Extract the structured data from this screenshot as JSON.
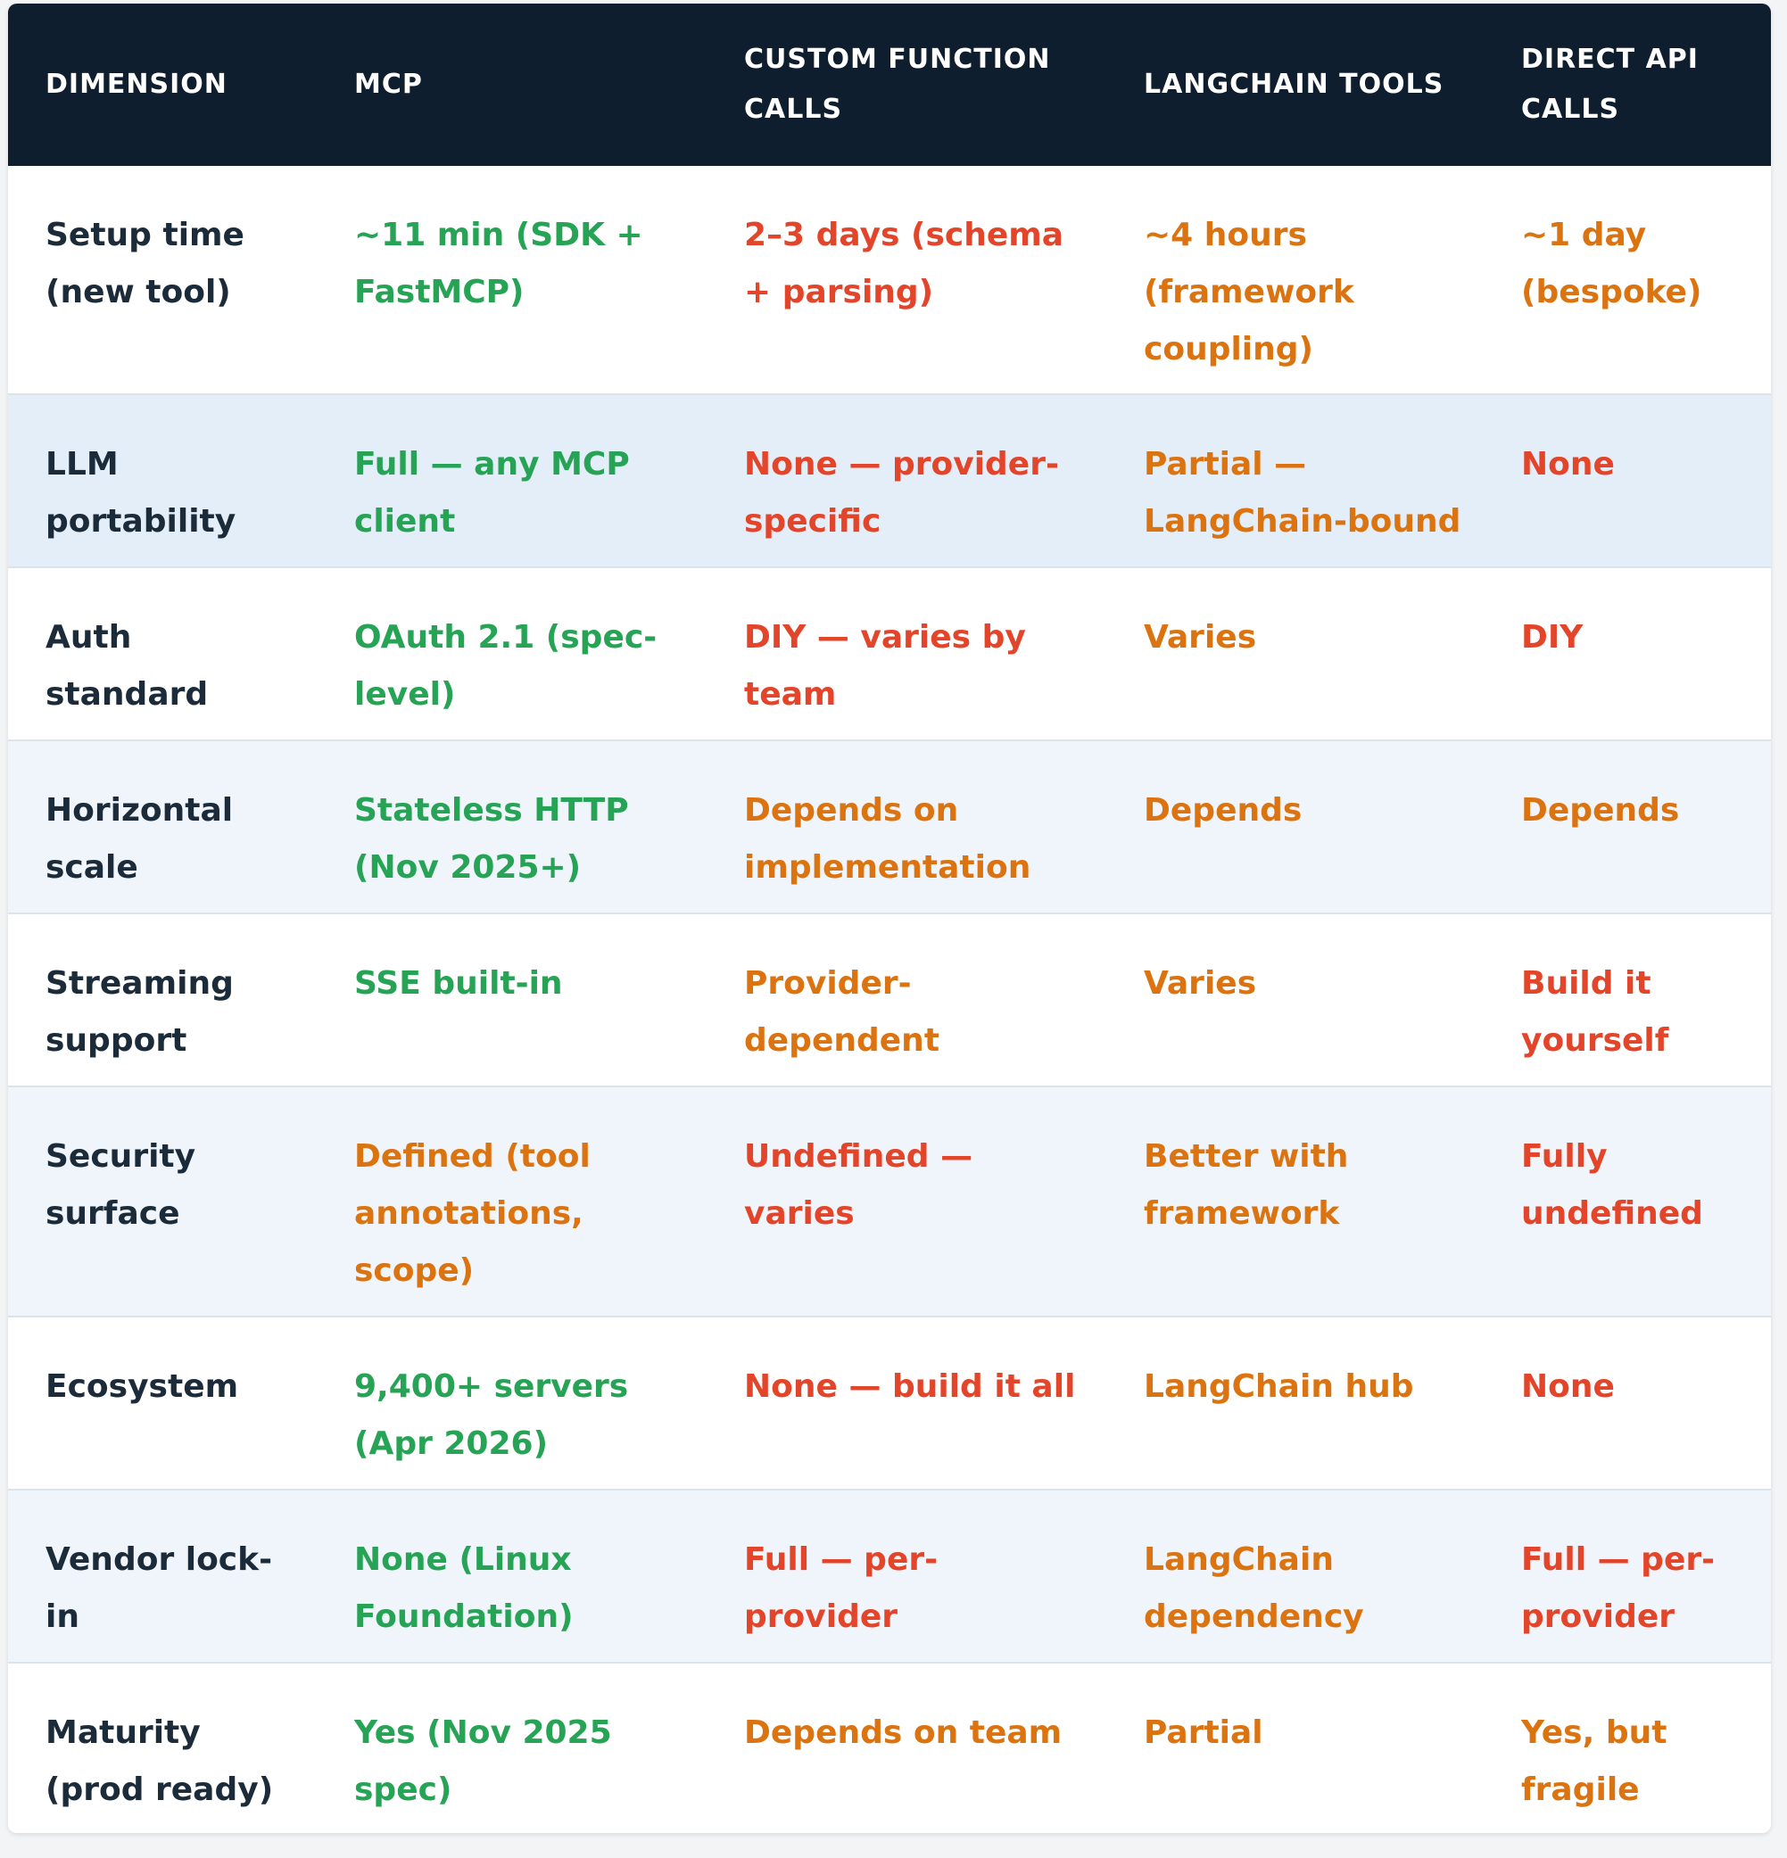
{
  "colors": {
    "header_bg": "#0e1e2e",
    "good": "#27a356",
    "warn": "#db7410",
    "bad": "#e3452a",
    "dimension_text": "#1c2b3a"
  },
  "table": {
    "headers": [
      "DIMENSION",
      "MCP",
      "CUSTOM FUNCTION CALLS",
      "LANGCHAIN TOOLS",
      "DIRECT API CALLS"
    ],
    "rows": [
      {
        "dimension": "Setup time (new tool)",
        "cells": [
          {
            "text": "~11 min (SDK + FastMCP)",
            "status": "good"
          },
          {
            "text": "2–3 days (schema + parsing)",
            "status": "bad"
          },
          {
            "text": "~4 hours (framework coupling)",
            "status": "warn"
          },
          {
            "text": "~1 day (bespoke)",
            "status": "warn"
          }
        ]
      },
      {
        "dimension": "LLM portability",
        "cells": [
          {
            "text": "Full — any MCP client",
            "status": "good"
          },
          {
            "text": "None — provider-specific",
            "status": "bad"
          },
          {
            "text": "Partial — LangChain-bound",
            "status": "warn"
          },
          {
            "text": "None",
            "status": "bad"
          }
        ]
      },
      {
        "dimension": "Auth standard",
        "cells": [
          {
            "text": "OAuth 2.1 (spec-level)",
            "status": "good"
          },
          {
            "text": "DIY — varies by team",
            "status": "bad"
          },
          {
            "text": "Varies",
            "status": "warn"
          },
          {
            "text": "DIY",
            "status": "bad"
          }
        ]
      },
      {
        "dimension": "Horizontal scale",
        "cells": [
          {
            "text": "Stateless HTTP (Nov 2025+)",
            "status": "good"
          },
          {
            "text": "Depends on implementation",
            "status": "warn"
          },
          {
            "text": "Depends",
            "status": "warn"
          },
          {
            "text": "Depends",
            "status": "warn"
          }
        ]
      },
      {
        "dimension": "Streaming support",
        "cells": [
          {
            "text": "SSE built-in",
            "status": "good"
          },
          {
            "text": "Provider-dependent",
            "status": "warn"
          },
          {
            "text": "Varies",
            "status": "warn"
          },
          {
            "text": "Build it yourself",
            "status": "bad"
          }
        ]
      },
      {
        "dimension": "Security surface",
        "cells": [
          {
            "text": "Defined (tool annotations, scope)",
            "status": "warn"
          },
          {
            "text": "Undefined — varies",
            "status": "bad"
          },
          {
            "text": "Better with framework",
            "status": "warn"
          },
          {
            "text": "Fully undefined",
            "status": "bad"
          }
        ]
      },
      {
        "dimension": "Ecosystem",
        "cells": [
          {
            "text": "9,400+ servers (Apr 2026)",
            "status": "good"
          },
          {
            "text": "None — build it all",
            "status": "bad"
          },
          {
            "text": "LangChain hub",
            "status": "warn"
          },
          {
            "text": "None",
            "status": "bad"
          }
        ]
      },
      {
        "dimension": "Vendor lock-in",
        "cells": [
          {
            "text": "None (Linux Foundation)",
            "status": "good"
          },
          {
            "text": "Full — per-provider",
            "status": "bad"
          },
          {
            "text": "LangChain dependency",
            "status": "warn"
          },
          {
            "text": "Full — per-provider",
            "status": "bad"
          }
        ]
      },
      {
        "dimension": "Maturity (prod ready)",
        "cells": [
          {
            "text": "Yes (Nov 2025 spec)",
            "status": "good"
          },
          {
            "text": "Depends on team",
            "status": "warn"
          },
          {
            "text": "Partial",
            "status": "warn"
          },
          {
            "text": "Yes, but fragile",
            "status": "warn"
          }
        ]
      }
    ]
  }
}
